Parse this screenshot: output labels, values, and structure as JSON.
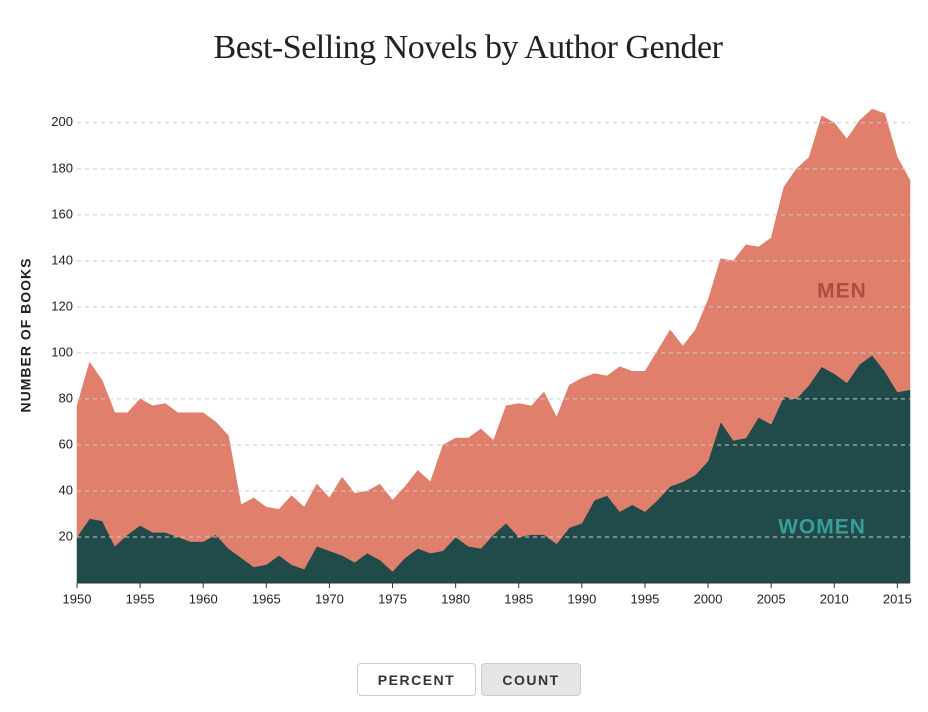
{
  "chart_data": {
    "type": "stacked-area",
    "title": "Best-Selling Novels by Author Gender",
    "y_label": "NUMBER OF BOOKS",
    "x": [
      1950,
      1951,
      1952,
      1953,
      1954,
      1955,
      1956,
      1957,
      1958,
      1959,
      1960,
      1961,
      1962,
      1963,
      1964,
      1965,
      1966,
      1967,
      1968,
      1969,
      1970,
      1971,
      1972,
      1973,
      1974,
      1975,
      1976,
      1977,
      1978,
      1979,
      1980,
      1981,
      1982,
      1983,
      1984,
      1985,
      1986,
      1987,
      1988,
      1989,
      1990,
      1991,
      1992,
      1993,
      1994,
      1995,
      1996,
      1997,
      1998,
      1999,
      2000,
      2001,
      2002,
      2003,
      2004,
      2005,
      2006,
      2007,
      2008,
      2009,
      2010,
      2011,
      2012,
      2013,
      2014,
      2015,
      2016
    ],
    "series": [
      {
        "name": "WOMEN",
        "color": "#204b4a",
        "label_color": "#3a9e98",
        "values": [
          20,
          28,
          27,
          16,
          21,
          25,
          22,
          22,
          20,
          18,
          18,
          21,
          15,
          11,
          7,
          8,
          12,
          8,
          6,
          16,
          14,
          12,
          9,
          13,
          10,
          5,
          11,
          15,
          13,
          14,
          20,
          16,
          15,
          21,
          26,
          20,
          21,
          21,
          17,
          24,
          26,
          36,
          38,
          31,
          34,
          31,
          36,
          42,
          44,
          47,
          53,
          70,
          62,
          63,
          72,
          69,
          81,
          80,
          86,
          94,
          91,
          87,
          95,
          99,
          92,
          83,
          84
        ]
      },
      {
        "name": "MEN",
        "color": "#e07f6c",
        "label_color": "#a94f42",
        "values": [
          57,
          68,
          61,
          58,
          53,
          55,
          55,
          56,
          54,
          56,
          56,
          49,
          49,
          23,
          30,
          25,
          20,
          30,
          27,
          27,
          23,
          34,
          30,
          27,
          33,
          31,
          31,
          34,
          31,
          46,
          43,
          47,
          52,
          41,
          51,
          58,
          56,
          62,
          55,
          62,
          63,
          55,
          52,
          63,
          58,
          61,
          65,
          68,
          59,
          63,
          70,
          71,
          78,
          84,
          74,
          81,
          91,
          100,
          99,
          109,
          109,
          106,
          106,
          107,
          112,
          102,
          91
        ]
      }
    ],
    "xlim": [
      1950,
      2016
    ],
    "xticks": [
      1950,
      1955,
      1960,
      1965,
      1970,
      1975,
      1980,
      1985,
      1990,
      1995,
      2000,
      2005,
      2010,
      2015
    ],
    "ylim": [
      0,
      206
    ],
    "yticks": [
      20,
      40,
      60,
      80,
      100,
      120,
      140,
      160,
      180,
      200
    ],
    "grid": true
  },
  "controls": [
    "PERCENT",
    "COUNT"
  ]
}
